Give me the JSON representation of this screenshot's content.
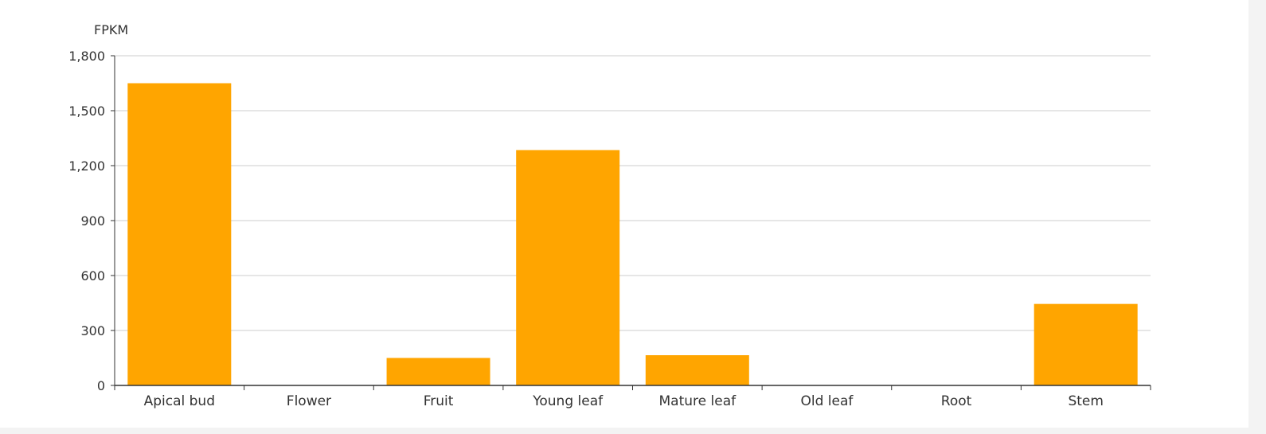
{
  "chart_data": {
    "type": "bar",
    "ylabel": "FPKM",
    "xlabel": "",
    "categories": [
      "Apical bud",
      "Flower",
      "Fruit",
      "Young leaf",
      "Mature leaf",
      "Old leaf",
      "Root",
      "Stem"
    ],
    "values": [
      1650,
      0,
      150,
      1285,
      165,
      0,
      0,
      445
    ],
    "ylim": [
      0,
      1800
    ],
    "yticks": [
      0,
      300,
      600,
      900,
      1200,
      1500,
      1800
    ],
    "ytick_labels": [
      "0",
      "300",
      "600",
      "900",
      "1,200",
      "1,500",
      "1,800"
    ],
    "grid": true,
    "legend": "none",
    "colors": {
      "bar": "#ffa500",
      "grid": "#cccccc",
      "axis": "#333333",
      "text": "#333333"
    }
  }
}
